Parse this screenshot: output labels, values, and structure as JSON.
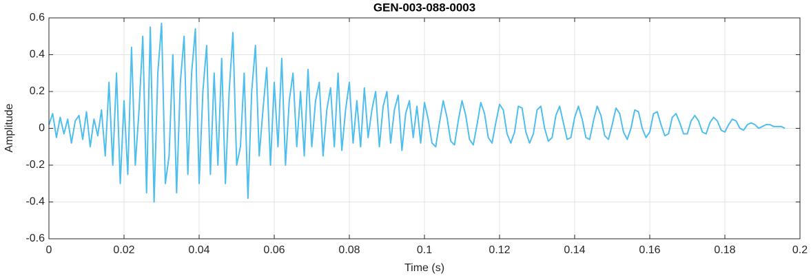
{
  "chart_data": {
    "type": "line",
    "title": "GEN-003-088-0003",
    "xlabel": "Time (s)",
    "ylabel": "Amplitude",
    "color": "#4dbeee",
    "grid": true,
    "xlim": [
      0,
      0.2
    ],
    "ylim": [
      -0.6,
      0.6
    ],
    "xticks": [
      0,
      0.02,
      0.04,
      0.06,
      0.08,
      0.1,
      0.12,
      0.14,
      0.16,
      0.18,
      0.2
    ],
    "yticks": [
      -0.6,
      -0.4,
      -0.2,
      0,
      0.2,
      0.4,
      0.6
    ],
    "x": [
      0,
      0.001,
      0.002,
      0.003,
      0.004,
      0.005,
      0.006,
      0.007,
      0.008,
      0.009,
      0.01,
      0.011,
      0.012,
      0.013,
      0.014,
      0.015,
      0.016,
      0.017,
      0.018,
      0.019,
      0.02,
      0.021,
      0.022,
      0.023,
      0.024,
      0.025,
      0.026,
      0.027,
      0.028,
      0.029,
      0.03,
      0.031,
      0.032,
      0.033,
      0.034,
      0.035,
      0.036,
      0.037,
      0.038,
      0.039,
      0.04,
      0.041,
      0.042,
      0.043,
      0.044,
      0.045,
      0.046,
      0.047,
      0.048,
      0.049,
      0.05,
      0.051,
      0.052,
      0.053,
      0.054,
      0.055,
      0.056,
      0.057,
      0.058,
      0.059,
      0.06,
      0.061,
      0.062,
      0.063,
      0.064,
      0.065,
      0.066,
      0.067,
      0.068,
      0.069,
      0.07,
      0.071,
      0.072,
      0.073,
      0.074,
      0.075,
      0.076,
      0.077,
      0.078,
      0.079,
      0.08,
      0.081,
      0.082,
      0.083,
      0.084,
      0.085,
      0.086,
      0.087,
      0.088,
      0.089,
      0.09,
      0.091,
      0.092,
      0.093,
      0.094,
      0.095,
      0.096,
      0.097,
      0.098,
      0.099,
      0.1,
      0.101,
      0.102,
      0.103,
      0.104,
      0.105,
      0.106,
      0.107,
      0.108,
      0.109,
      0.11,
      0.111,
      0.112,
      0.113,
      0.114,
      0.115,
      0.116,
      0.117,
      0.118,
      0.119,
      0.12,
      0.121,
      0.122,
      0.123,
      0.124,
      0.125,
      0.126,
      0.127,
      0.128,
      0.129,
      0.13,
      0.131,
      0.132,
      0.133,
      0.134,
      0.135,
      0.136,
      0.137,
      0.138,
      0.139,
      0.14,
      0.141,
      0.142,
      0.143,
      0.144,
      0.145,
      0.146,
      0.147,
      0.148,
      0.149,
      0.15,
      0.151,
      0.152,
      0.153,
      0.154,
      0.155,
      0.156,
      0.157,
      0.158,
      0.159,
      0.16,
      0.161,
      0.162,
      0.163,
      0.164,
      0.165,
      0.166,
      0.167,
      0.168,
      0.169,
      0.17,
      0.171,
      0.172,
      0.173,
      0.174,
      0.175,
      0.176,
      0.177,
      0.178,
      0.179,
      0.18,
      0.181,
      0.182,
      0.183,
      0.184,
      0.185,
      0.186,
      0.187,
      0.188,
      0.189,
      0.19,
      0.191,
      0.192,
      0.193,
      0.194,
      0.195,
      0.196
    ],
    "values": [
      0.02,
      0.08,
      -0.05,
      0.06,
      -0.03,
      0.05,
      -0.08,
      0.04,
      0.07,
      -0.06,
      0.09,
      -0.1,
      0.05,
      -0.04,
      0.1,
      -0.15,
      0.25,
      -0.2,
      0.3,
      -0.3,
      0.15,
      -0.25,
      0.44,
      -0.2,
      0.1,
      0.5,
      -0.35,
      0.55,
      -0.4,
      0.3,
      0.57,
      -0.3,
      -0.15,
      0.4,
      -0.35,
      0.25,
      0.5,
      -0.25,
      0.3,
      0.54,
      -0.3,
      0.2,
      0.45,
      -0.25,
      0.3,
      -0.2,
      0.38,
      -0.3,
      0.2,
      0.52,
      -0.2,
      -0.1,
      0.3,
      -0.38,
      0.2,
      0.45,
      -0.15,
      0.1,
      0.33,
      -0.2,
      0.25,
      -0.1,
      0.38,
      -0.2,
      0.15,
      0.3,
      -0.1,
      0.2,
      -0.15,
      0.32,
      -0.1,
      0.15,
      0.25,
      -0.15,
      0.1,
      0.22,
      -0.1,
      0.3,
      -0.12,
      0.1,
      0.25,
      -0.08,
      0.15,
      -0.1,
      0.22,
      -0.05,
      0.1,
      0.2,
      -0.1,
      0.12,
      0.2,
      -0.08,
      0.1,
      0.18,
      -0.12,
      0.08,
      0.15,
      -0.05,
      0.12,
      -0.08,
      0.14,
      0.05,
      -0.08,
      -0.1,
      0.03,
      0.15,
      0.06,
      -0.07,
      -0.09,
      0.04,
      0.15,
      0.07,
      -0.06,
      -0.09,
      0.02,
      0.14,
      0.08,
      -0.05,
      -0.08,
      0.03,
      0.13,
      0.1,
      -0.03,
      -0.08,
      -0.02,
      0.12,
      0.11,
      -0.02,
      -0.08,
      -0.03,
      0.1,
      0.12,
      0.0,
      -0.07,
      -0.05,
      0.07,
      0.12,
      0.03,
      -0.06,
      -0.05,
      0.06,
      0.12,
      0.05,
      -0.05,
      -0.06,
      0.04,
      0.12,
      0.07,
      -0.04,
      -0.06,
      0.02,
      0.11,
      0.08,
      -0.02,
      -0.06,
      0.0,
      0.1,
      0.09,
      0.0,
      -0.05,
      -0.02,
      0.08,
      0.09,
      0.02,
      -0.04,
      -0.03,
      0.06,
      0.08,
      0.03,
      -0.03,
      -0.03,
      0.04,
      0.07,
      0.04,
      -0.02,
      -0.03,
      0.03,
      0.06,
      0.04,
      -0.01,
      -0.02,
      0.02,
      0.05,
      0.04,
      0.0,
      -0.01,
      0.02,
      0.03,
      0.02,
      0.0,
      0.01,
      0.02,
      0.02,
      0.01,
      0.01,
      0.01,
      0.0
    ]
  }
}
